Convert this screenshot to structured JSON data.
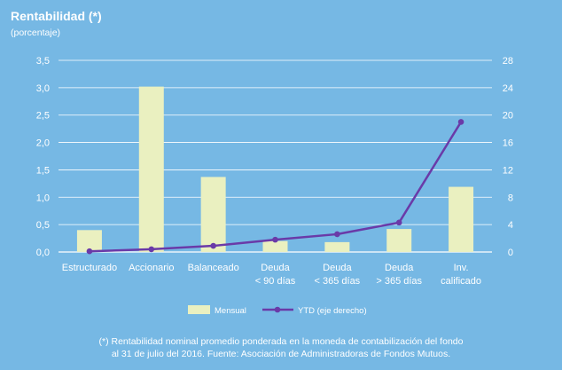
{
  "chart_data": {
    "type": "bar",
    "title": "Rentabilidad (*)",
    "subtitle": "(porcentaje)",
    "categories": [
      [
        "Estructurado"
      ],
      [
        "Accionario"
      ],
      [
        "Balanceado"
      ],
      [
        "Deuda",
        "< 90 días"
      ],
      [
        "Deuda",
        "< 365 días"
      ],
      [
        "Deuda",
        "> 365 días"
      ],
      [
        "Inv.",
        "calificado"
      ]
    ],
    "series": [
      {
        "name": "Mensual",
        "type": "bar",
        "axis": "left",
        "values": [
          0.4,
          3.02,
          1.37,
          0.2,
          0.18,
          0.42,
          1.19
        ]
      },
      {
        "name": "YTD (eje derecho)",
        "type": "line",
        "axis": "right",
        "values": [
          0.1,
          0.4,
          0.9,
          1.8,
          2.6,
          4.3,
          19.0
        ]
      }
    ],
    "y_left": {
      "range": [
        0,
        3.5
      ],
      "ticks": [
        "0,0",
        "0,5",
        "1,0",
        "1,5",
        "2,0",
        "2,5",
        "3,0",
        "3,5"
      ]
    },
    "y_right": {
      "range": [
        0,
        28
      ],
      "ticks": [
        "0",
        "4",
        "8",
        "12",
        "16",
        "20",
        "24",
        "28"
      ]
    },
    "grid": true,
    "legend": "bottom-center",
    "colors": {
      "background": "#76b8e4",
      "bar": "#eaf0c0",
      "line": "#6a3aa8",
      "grid": "#ffffff"
    }
  },
  "footnote": [
    "(*) Rentabilidad nominal promedio ponderada en la moneda de contabilización del fondo",
    "al 31 de julio del 2016. Fuente: Asociación de Administradoras de Fondos Mutuos."
  ]
}
